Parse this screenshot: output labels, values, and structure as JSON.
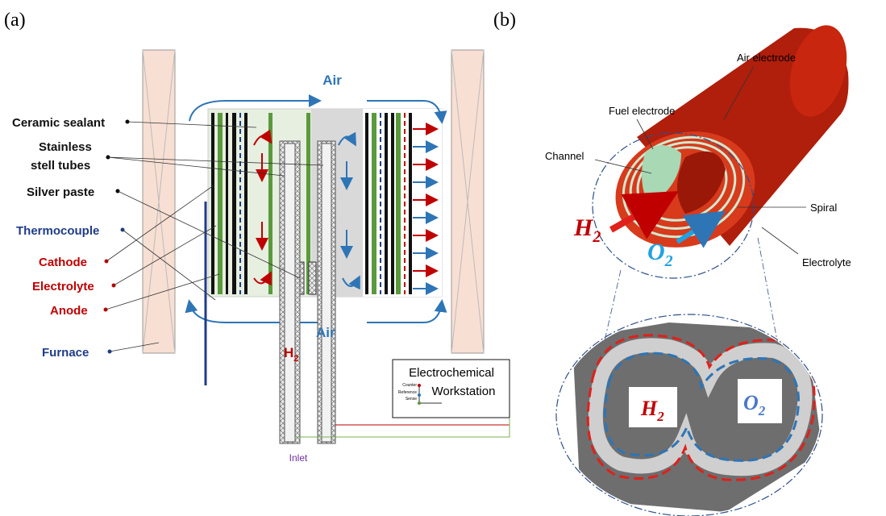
{
  "panel_a": {
    "label": "(a)",
    "air_flow": "Air",
    "callouts": [
      "Ceramic sealant",
      "Stainless",
      "stell tubes",
      "Silver paste",
      "Thermocouple",
      "Cathode",
      "Electrolyte",
      "Anode",
      "Furnace"
    ],
    "tube_labels": {
      "fuel": "H",
      "fuel_sub": "2",
      "air": "Air"
    },
    "workstation": {
      "lines": [
        "Electrochemical",
        "Workstation"
      ],
      "terminals": [
        "Counter",
        "Reference",
        "Sense"
      ]
    },
    "inlet": "Inlet"
  },
  "panel_b": {
    "label": "(b)",
    "callouts": [
      "Air electrode",
      "Fuel electrode",
      "Channel",
      "Spiral",
      "Electrolyte"
    ],
    "gases": [
      {
        "main": "H",
        "sub": "2"
      },
      {
        "main": "O",
        "sub": "2"
      }
    ],
    "micrograph_gases": [
      {
        "main": "H",
        "sub": "2"
      },
      {
        "main": "O",
        "sub": "2"
      }
    ]
  }
}
